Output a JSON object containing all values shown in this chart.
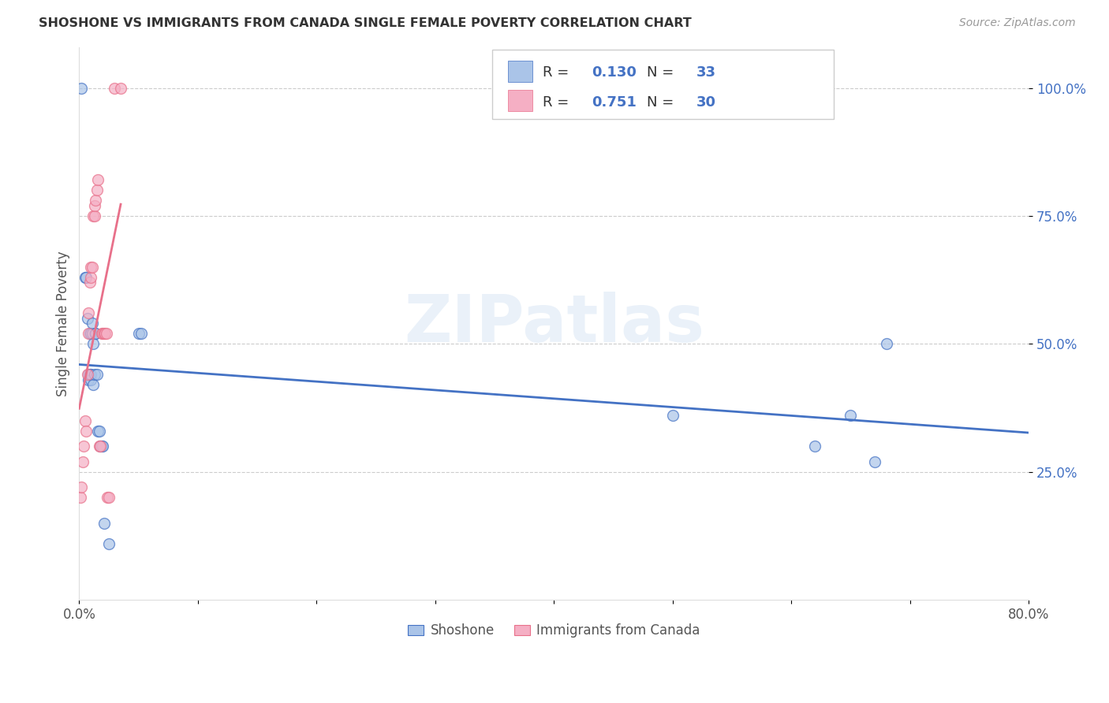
{
  "title": "SHOSHONE VS IMMIGRANTS FROM CANADA SINGLE FEMALE POVERTY CORRELATION CHART",
  "source": "Source: ZipAtlas.com",
  "ylabel": "Single Female Poverty",
  "xlim": [
    0.0,
    0.8
  ],
  "ylim": [
    0.0,
    1.08
  ],
  "ytick_pos": [
    0.25,
    0.5,
    0.75,
    1.0
  ],
  "ytick_labels": [
    "25.0%",
    "50.0%",
    "75.0%",
    "100.0%"
  ],
  "xtick_pos": [
    0.0,
    0.1,
    0.2,
    0.3,
    0.4,
    0.5,
    0.6,
    0.7,
    0.8
  ],
  "xtick_labels": [
    "0.0%",
    "",
    "",
    "",
    "",
    "",
    "",
    "",
    "80.0%"
  ],
  "legend_label1": "Shoshone",
  "legend_label2": "Immigrants from Canada",
  "R1": "0.130",
  "N1": "33",
  "R2": "0.751",
  "N2": "30",
  "shoshone_color": "#aac4e8",
  "canada_color": "#f5afc4",
  "shoshone_line_color": "#4472c4",
  "canada_line_color": "#e8708a",
  "blue_text_color": "#4472c4",
  "watermark": "ZIPatlas",
  "shoshone_x": [
    0.002,
    0.005,
    0.006,
    0.007,
    0.008,
    0.008,
    0.009,
    0.009,
    0.01,
    0.01,
    0.01,
    0.011,
    0.011,
    0.012,
    0.012,
    0.013,
    0.014,
    0.014,
    0.015,
    0.016,
    0.017,
    0.018,
    0.019,
    0.02,
    0.021,
    0.025,
    0.05,
    0.052,
    0.5,
    0.62,
    0.65,
    0.67,
    0.68
  ],
  "shoshone_y": [
    1.0,
    0.63,
    0.63,
    0.55,
    0.43,
    0.44,
    0.44,
    0.52,
    0.43,
    0.44,
    0.52,
    0.52,
    0.54,
    0.5,
    0.42,
    0.44,
    0.52,
    0.52,
    0.44,
    0.33,
    0.33,
    0.3,
    0.3,
    0.3,
    0.15,
    0.11,
    0.52,
    0.52,
    0.36,
    0.3,
    0.36,
    0.27,
    0.5
  ],
  "canada_x": [
    0.001,
    0.002,
    0.003,
    0.004,
    0.005,
    0.006,
    0.007,
    0.008,
    0.008,
    0.009,
    0.01,
    0.01,
    0.011,
    0.012,
    0.013,
    0.013,
    0.014,
    0.015,
    0.016,
    0.017,
    0.018,
    0.019,
    0.02,
    0.021,
    0.022,
    0.023,
    0.024,
    0.025,
    0.03,
    0.035
  ],
  "canada_y": [
    0.2,
    0.22,
    0.27,
    0.3,
    0.35,
    0.33,
    0.44,
    0.52,
    0.56,
    0.62,
    0.63,
    0.65,
    0.65,
    0.75,
    0.75,
    0.77,
    0.78,
    0.8,
    0.82,
    0.3,
    0.3,
    0.52,
    0.52,
    0.52,
    0.52,
    0.52,
    0.2,
    0.2,
    1.0,
    1.0
  ]
}
